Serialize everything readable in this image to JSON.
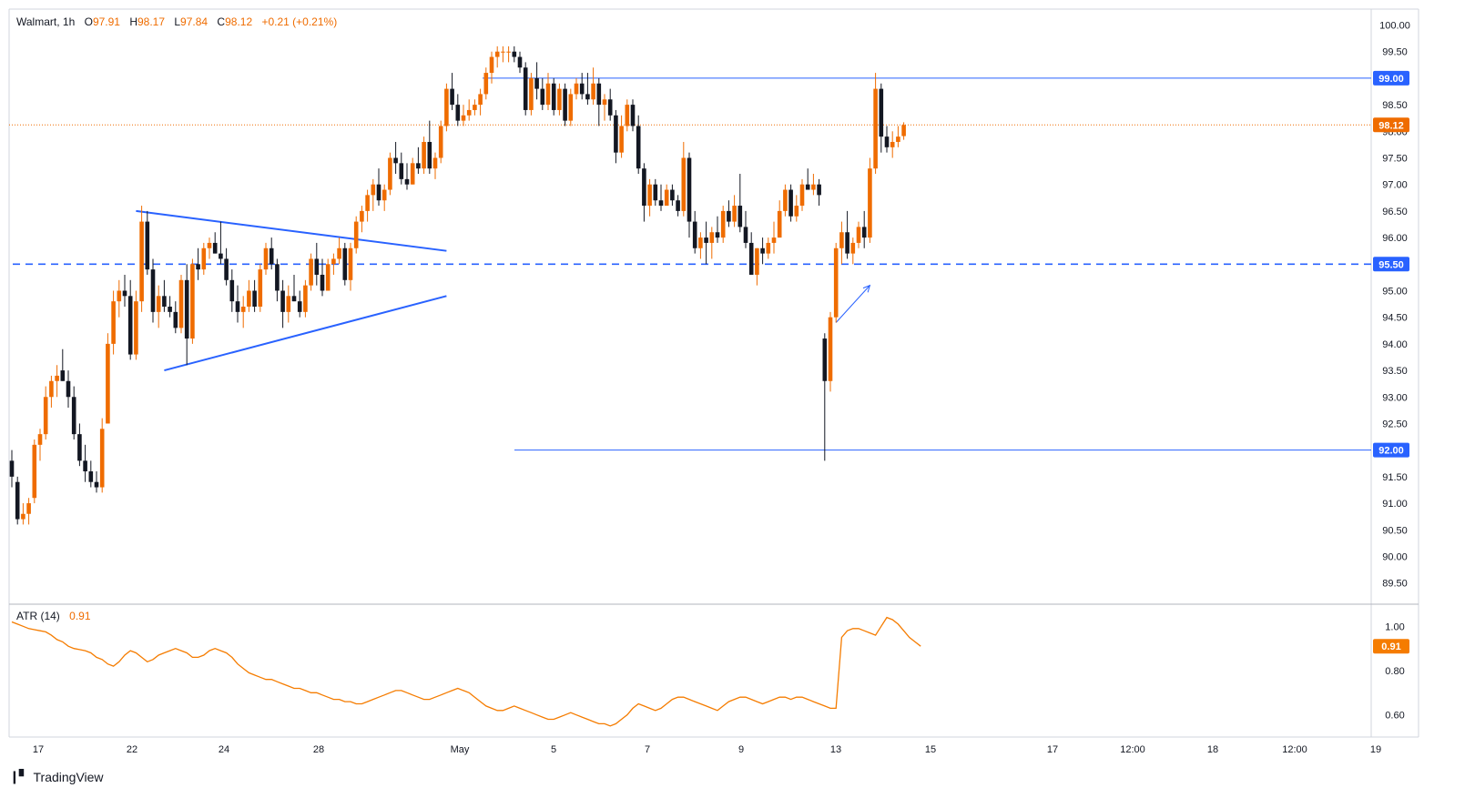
{
  "header": {
    "symbol": "Walmart, 1h",
    "o_label": "O",
    "o_value": "97.91",
    "h_label": "H",
    "h_value": "98.17",
    "l_label": "L",
    "l_value": "97.84",
    "c_label": "C",
    "c_value": "98.12",
    "change": "+0.21 (+0.21%)"
  },
  "atr": {
    "label": "ATR (14)",
    "value": "0.91"
  },
  "brand": {
    "logo_icon": "tradingview-logo-icon",
    "name": "TradingView"
  },
  "colors": {
    "up": "#ef6c00",
    "down": "#131722",
    "level": "#2962ff",
    "price_line": "#ef6c00",
    "atr_line": "#f57c00"
  },
  "chart_data": [
    {
      "type": "candlestick",
      "timeframe": "1h",
      "x_tick_labels": [
        "17",
        "22",
        "24",
        "28",
        "May",
        "5",
        "7",
        "9",
        "13",
        "15",
        "17",
        "12:00",
        "18",
        "12:00",
        "19"
      ],
      "y_tick_labels": [
        "89.50",
        "90.00",
        "90.50",
        "91.00",
        "91.50",
        "92.00",
        "92.50",
        "93.00",
        "93.50",
        "94.00",
        "94.50",
        "95.00",
        "95.50",
        "96.00",
        "96.50",
        "97.00",
        "97.50",
        "98.00",
        "98.50",
        "99.00",
        "99.50",
        "100.00"
      ],
      "y_range": [
        89.1,
        100.3
      ],
      "last_price": 98.12,
      "last_price_label": "98.12",
      "levels": [
        {
          "value": 99.0,
          "label": "99.00",
          "style": "solid"
        },
        {
          "value": 95.5,
          "label": "95.50",
          "style": "dashed"
        },
        {
          "value": 92.0,
          "label": "92.00",
          "style": "solid"
        }
      ],
      "candles": [
        [
          91.8,
          92.0,
          91.3,
          91.5
        ],
        [
          91.4,
          91.5,
          90.6,
          90.7
        ],
        [
          90.7,
          91.0,
          90.6,
          90.8
        ],
        [
          90.8,
          91.1,
          90.6,
          91.0
        ],
        [
          91.1,
          92.2,
          91.0,
          92.1
        ],
        [
          92.1,
          92.4,
          91.8,
          92.3
        ],
        [
          92.3,
          93.2,
          92.2,
          93.0
        ],
        [
          93.0,
          93.4,
          92.8,
          93.3
        ],
        [
          93.3,
          93.6,
          93.0,
          93.4
        ],
        [
          93.5,
          93.9,
          93.3,
          93.3
        ],
        [
          93.3,
          93.5,
          92.8,
          93.0
        ],
        [
          93.0,
          93.2,
          92.2,
          92.3
        ],
        [
          92.3,
          92.5,
          91.7,
          91.8
        ],
        [
          91.8,
          92.1,
          91.4,
          91.6
        ],
        [
          91.6,
          91.8,
          91.3,
          91.4
        ],
        [
          91.4,
          91.6,
          91.2,
          91.3
        ],
        [
          91.3,
          92.6,
          91.2,
          92.4
        ],
        [
          92.5,
          94.2,
          92.5,
          94.0
        ],
        [
          94.0,
          95.0,
          93.8,
          94.8
        ],
        [
          94.8,
          95.2,
          94.5,
          95.0
        ],
        [
          95.0,
          95.3,
          94.7,
          94.9
        ],
        [
          94.9,
          95.2,
          93.7,
          93.8
        ],
        [
          93.8,
          95.0,
          93.7,
          94.8
        ],
        [
          94.8,
          96.6,
          94.6,
          96.3
        ],
        [
          96.3,
          96.5,
          95.3,
          95.4
        ],
        [
          95.4,
          95.6,
          94.4,
          94.6
        ],
        [
          94.6,
          95.1,
          94.3,
          94.9
        ],
        [
          94.9,
          95.2,
          94.6,
          94.7
        ],
        [
          94.7,
          94.9,
          94.5,
          94.6
        ],
        [
          94.6,
          94.8,
          94.2,
          94.3
        ],
        [
          94.3,
          95.3,
          94.2,
          95.2
        ],
        [
          95.2,
          95.5,
          93.6,
          94.1
        ],
        [
          94.1,
          95.6,
          94.0,
          95.5
        ],
        [
          95.5,
          95.8,
          95.2,
          95.4
        ],
        [
          95.4,
          95.9,
          95.3,
          95.8
        ],
        [
          95.8,
          96.0,
          95.6,
          95.9
        ],
        [
          95.9,
          96.1,
          95.7,
          95.7
        ],
        [
          95.7,
          96.3,
          95.5,
          95.6
        ],
        [
          95.6,
          95.8,
          95.1,
          95.2
        ],
        [
          95.2,
          95.4,
          94.6,
          94.8
        ],
        [
          94.8,
          95.1,
          94.4,
          94.6
        ],
        [
          94.6,
          94.9,
          94.3,
          94.7
        ],
        [
          94.7,
          95.2,
          94.6,
          95.0
        ],
        [
          95.0,
          95.2,
          94.6,
          94.7
        ],
        [
          94.7,
          95.5,
          94.6,
          95.4
        ],
        [
          95.4,
          95.9,
          95.3,
          95.8
        ],
        [
          95.8,
          96.0,
          95.4,
          95.5
        ],
        [
          95.5,
          95.6,
          94.8,
          95.0
        ],
        [
          95.0,
          95.2,
          94.3,
          94.6
        ],
        [
          94.6,
          95.1,
          94.4,
          94.9
        ],
        [
          94.9,
          95.3,
          94.8,
          94.8
        ],
        [
          94.8,
          95.0,
          94.5,
          94.6
        ],
        [
          94.6,
          95.2,
          94.5,
          95.1
        ],
        [
          95.1,
          95.7,
          95.0,
          95.6
        ],
        [
          95.6,
          95.9,
          95.1,
          95.3
        ],
        [
          95.3,
          95.6,
          94.9,
          95.0
        ],
        [
          95.0,
          95.6,
          95.0,
          95.5
        ],
        [
          95.5,
          95.7,
          95.3,
          95.6
        ],
        [
          95.6,
          96.0,
          95.5,
          95.8
        ],
        [
          95.8,
          95.9,
          95.1,
          95.2
        ],
        [
          95.2,
          95.9,
          95.0,
          95.8
        ],
        [
          95.8,
          96.4,
          95.7,
          96.3
        ],
        [
          96.3,
          96.6,
          96.1,
          96.5
        ],
        [
          96.5,
          96.9,
          96.3,
          96.8
        ],
        [
          96.8,
          97.1,
          96.5,
          97.0
        ],
        [
          97.0,
          97.3,
          96.6,
          96.7
        ],
        [
          96.7,
          97.0,
          96.5,
          96.9
        ],
        [
          96.9,
          97.6,
          96.8,
          97.5
        ],
        [
          97.5,
          97.8,
          97.2,
          97.4
        ],
        [
          97.4,
          97.6,
          97.0,
          97.1
        ],
        [
          97.1,
          97.4,
          96.9,
          97.0
        ],
        [
          97.0,
          97.5,
          97.0,
          97.4
        ],
        [
          97.4,
          97.7,
          97.2,
          97.3
        ],
        [
          97.3,
          97.9,
          97.2,
          97.8
        ],
        [
          97.8,
          98.2,
          97.2,
          97.3
        ],
        [
          97.3,
          97.6,
          97.1,
          97.5
        ],
        [
          97.5,
          98.2,
          97.4,
          98.1
        ],
        [
          98.1,
          98.9,
          98.0,
          98.8
        ],
        [
          98.8,
          99.1,
          98.4,
          98.5
        ],
        [
          98.5,
          98.7,
          98.1,
          98.2
        ],
        [
          98.2,
          98.5,
          98.1,
          98.3
        ],
        [
          98.3,
          98.6,
          98.2,
          98.4
        ],
        [
          98.4,
          98.6,
          98.3,
          98.5
        ],
        [
          98.5,
          98.8,
          98.3,
          98.7
        ],
        [
          98.7,
          99.2,
          98.6,
          99.1
        ],
        [
          99.1,
          99.5,
          98.9,
          99.4
        ],
        [
          99.4,
          99.6,
          99.2,
          99.5
        ],
        [
          99.5,
          99.6,
          99.3,
          99.5
        ],
        [
          99.5,
          99.6,
          99.3,
          99.5
        ],
        [
          99.5,
          99.6,
          99.3,
          99.4
        ],
        [
          99.4,
          99.5,
          99.1,
          99.2
        ],
        [
          99.2,
          99.3,
          98.3,
          98.4
        ],
        [
          98.4,
          99.1,
          98.3,
          99.0
        ],
        [
          99.0,
          99.3,
          98.6,
          98.8
        ],
        [
          98.8,
          99.0,
          98.4,
          98.5
        ],
        [
          98.5,
          99.1,
          98.4,
          98.9
        ],
        [
          98.9,
          99.0,
          98.3,
          98.4
        ],
        [
          98.4,
          98.9,
          98.3,
          98.8
        ],
        [
          98.8,
          98.9,
          98.1,
          98.2
        ],
        [
          98.2,
          98.8,
          98.1,
          98.7
        ],
        [
          98.7,
          99.0,
          98.6,
          98.9
        ],
        [
          98.9,
          99.1,
          98.6,
          98.7
        ],
        [
          98.7,
          99.1,
          98.5,
          98.6
        ],
        [
          98.6,
          99.2,
          98.5,
          98.9
        ],
        [
          98.9,
          99.0,
          98.1,
          98.5
        ],
        [
          98.5,
          98.7,
          98.2,
          98.6
        ],
        [
          98.6,
          98.8,
          98.2,
          98.3
        ],
        [
          98.3,
          98.4,
          97.4,
          97.6
        ],
        [
          97.6,
          98.3,
          97.5,
          98.1
        ],
        [
          98.1,
          98.6,
          98.0,
          98.5
        ],
        [
          98.5,
          98.6,
          98.0,
          98.1
        ],
        [
          98.1,
          98.3,
          97.2,
          97.3
        ],
        [
          97.3,
          97.4,
          96.3,
          96.6
        ],
        [
          96.6,
          97.1,
          96.4,
          97.0
        ],
        [
          97.0,
          97.1,
          96.6,
          96.7
        ],
        [
          96.7,
          97.0,
          96.5,
          96.6
        ],
        [
          96.6,
          97.0,
          96.6,
          96.9
        ],
        [
          96.9,
          97.0,
          96.6,
          96.7
        ],
        [
          96.7,
          96.8,
          96.4,
          96.5
        ],
        [
          96.5,
          97.8,
          96.4,
          97.5
        ],
        [
          97.5,
          97.6,
          96.0,
          96.3
        ],
        [
          96.3,
          96.5,
          95.7,
          95.8
        ],
        [
          95.8,
          96.1,
          95.6,
          96.0
        ],
        [
          96.0,
          96.3,
          95.5,
          95.9
        ],
        [
          95.9,
          96.2,
          95.6,
          96.1
        ],
        [
          96.1,
          96.4,
          95.9,
          96.0
        ],
        [
          96.0,
          96.6,
          95.9,
          96.5
        ],
        [
          96.5,
          96.7,
          96.2,
          96.3
        ],
        [
          96.3,
          96.8,
          96.2,
          96.6
        ],
        [
          96.6,
          97.2,
          96.1,
          96.2
        ],
        [
          96.2,
          96.5,
          95.8,
          95.9
        ],
        [
          95.9,
          96.1,
          95.4,
          95.3
        ],
        [
          95.3,
          95.8,
          95.1,
          95.8
        ],
        [
          95.8,
          96.0,
          95.5,
          95.7
        ],
        [
          95.7,
          96.0,
          95.6,
          95.9
        ],
        [
          95.9,
          96.3,
          95.7,
          96.0
        ],
        [
          96.0,
          96.7,
          96.0,
          96.5
        ],
        [
          96.5,
          97.0,
          96.4,
          96.9
        ],
        [
          96.9,
          97.0,
          96.3,
          96.4
        ],
        [
          96.4,
          96.8,
          96.3,
          96.6
        ],
        [
          96.6,
          97.1,
          96.5,
          97.0
        ],
        [
          97.0,
          97.3,
          96.9,
          96.9
        ],
        [
          96.9,
          97.2,
          96.8,
          97.0
        ],
        [
          97.0,
          97.1,
          96.6,
          96.8
        ],
        [
          94.1,
          94.2,
          91.8,
          93.3
        ],
        [
          93.3,
          94.6,
          93.1,
          94.5
        ],
        [
          94.5,
          95.9,
          94.4,
          95.8
        ],
        [
          95.8,
          96.3,
          95.5,
          96.1
        ],
        [
          96.1,
          96.5,
          95.6,
          95.7
        ],
        [
          95.7,
          96.0,
          95.5,
          95.9
        ],
        [
          95.9,
          96.3,
          95.8,
          96.2
        ],
        [
          96.2,
          96.5,
          95.8,
          96.0
        ],
        [
          96.0,
          97.5,
          95.9,
          97.3
        ],
        [
          97.3,
          99.1,
          97.2,
          98.8
        ],
        [
          98.8,
          98.9,
          97.6,
          97.9
        ],
        [
          97.9,
          98.1,
          97.6,
          97.7
        ],
        [
          97.7,
          98.0,
          97.5,
          97.8
        ],
        [
          97.8,
          98.1,
          97.7,
          97.9
        ],
        [
          97.91,
          98.17,
          97.84,
          98.12
        ]
      ],
      "trendlines": [
        {
          "name": "upper",
          "from": {
            "i": 22,
            "v": 96.5
          },
          "to": {
            "i": 77,
            "v": 95.75
          }
        },
        {
          "name": "lower",
          "from": {
            "i": 27,
            "v": 93.5
          },
          "to": {
            "i": 77,
            "v": 94.9
          }
        }
      ],
      "arrow": {
        "from": {
          "i": 146,
          "v": 94.4
        },
        "to": {
          "i": 152,
          "v": 95.1
        }
      }
    },
    {
      "type": "line",
      "name": "ATR (14)",
      "y_tick_labels": [
        "0.60",
        "0.80",
        "1.00"
      ],
      "y_range": [
        0.5,
        1.1
      ],
      "last_value": 0.91,
      "last_value_label": "0.91",
      "values": [
        1.02,
        1.01,
        1.0,
        0.99,
        0.985,
        0.98,
        0.975,
        0.96,
        0.94,
        0.93,
        0.91,
        0.9,
        0.895,
        0.89,
        0.88,
        0.86,
        0.85,
        0.83,
        0.82,
        0.84,
        0.87,
        0.89,
        0.88,
        0.86,
        0.84,
        0.85,
        0.87,
        0.88,
        0.89,
        0.9,
        0.89,
        0.88,
        0.86,
        0.86,
        0.87,
        0.89,
        0.9,
        0.89,
        0.88,
        0.86,
        0.83,
        0.81,
        0.79,
        0.78,
        0.77,
        0.76,
        0.76,
        0.75,
        0.74,
        0.73,
        0.72,
        0.72,
        0.71,
        0.7,
        0.7,
        0.69,
        0.68,
        0.67,
        0.67,
        0.66,
        0.66,
        0.65,
        0.65,
        0.66,
        0.67,
        0.68,
        0.69,
        0.7,
        0.71,
        0.71,
        0.7,
        0.69,
        0.68,
        0.67,
        0.67,
        0.68,
        0.69,
        0.7,
        0.71,
        0.72,
        0.71,
        0.7,
        0.68,
        0.66,
        0.64,
        0.63,
        0.62,
        0.62,
        0.63,
        0.64,
        0.63,
        0.62,
        0.61,
        0.6,
        0.59,
        0.58,
        0.58,
        0.59,
        0.6,
        0.61,
        0.6,
        0.59,
        0.58,
        0.57,
        0.56,
        0.56,
        0.55,
        0.56,
        0.58,
        0.6,
        0.63,
        0.65,
        0.64,
        0.63,
        0.62,
        0.63,
        0.65,
        0.67,
        0.68,
        0.68,
        0.67,
        0.66,
        0.65,
        0.64,
        0.63,
        0.62,
        0.64,
        0.66,
        0.67,
        0.68,
        0.68,
        0.67,
        0.66,
        0.65,
        0.66,
        0.67,
        0.68,
        0.68,
        0.67,
        0.68,
        0.68,
        0.67,
        0.66,
        0.65,
        0.64,
        0.63,
        0.63,
        0.95,
        0.98,
        0.99,
        0.99,
        0.98,
        0.97,
        0.96,
        1.0,
        1.04,
        1.03,
        1.01,
        0.98,
        0.95,
        0.93,
        0.91
      ]
    }
  ]
}
